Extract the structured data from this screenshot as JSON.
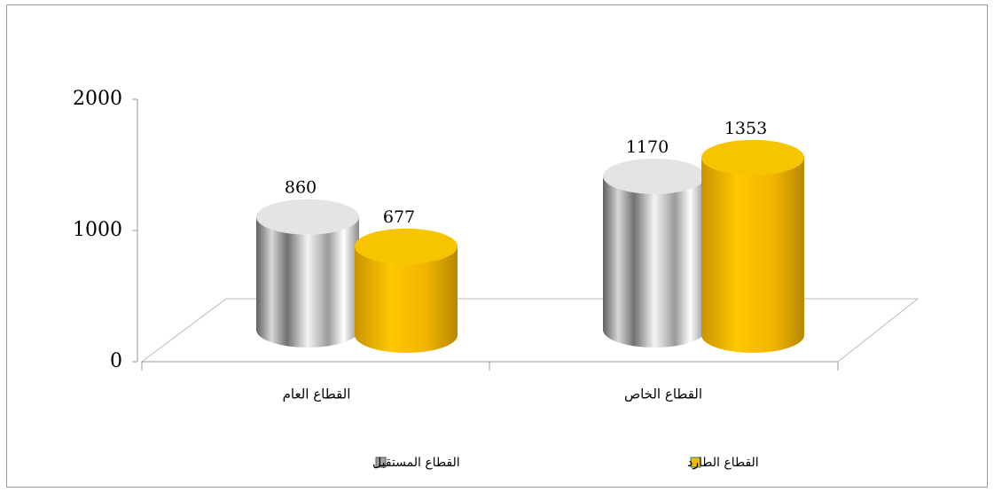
{
  "chart_data": {
    "type": "bar3d-cylinder",
    "categories": [
      "القطاع العام",
      "القطاع الخاص"
    ],
    "series": [
      {
        "name": "القطاع المستقبل",
        "color": "#a0a0a0",
        "values": [
          860,
          1170
        ]
      },
      {
        "name": "القطاع الطارد",
        "color": "#f2b800",
        "values": [
          677,
          1353
        ]
      }
    ],
    "ylim": [
      0,
      2000
    ],
    "yticks": [
      0,
      1000,
      2000
    ],
    "legend": "bottom"
  }
}
